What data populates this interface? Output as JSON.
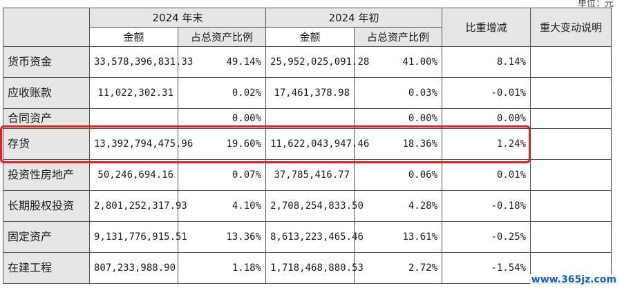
{
  "unit_label": "单位：元",
  "header": {
    "period_end": "2024 年末",
    "period_start": "2024 年初",
    "ratio_change": "比重增减",
    "major_change_note": "重大变动说明",
    "amount": "金额",
    "pct_of_total_assets": "占总资产比例"
  },
  "rows": [
    {
      "item": "货币资金",
      "end_amount": "33,578,396,831.33",
      "end_pct": "49.14%",
      "start_amount": "25,952,025,091.28",
      "start_pct": "41.00%",
      "change": "8.14%",
      "note": ""
    },
    {
      "item": "应收账款",
      "end_amount": "11,022,302.31",
      "end_pct": "0.02%",
      "start_amount": "17,461,378.98",
      "start_pct": "0.03%",
      "change": "-0.01%",
      "note": ""
    },
    {
      "item": "合同资产",
      "end_amount": "",
      "end_pct": "0.00%",
      "start_amount": "",
      "start_pct": "0.00%",
      "change": "0.00%",
      "note": ""
    },
    {
      "item": "存货",
      "end_amount": "13,392,794,475.96",
      "end_pct": "19.60%",
      "start_amount": "11,622,043,947.46",
      "start_pct": "18.36%",
      "change": "1.24%",
      "note": ""
    },
    {
      "item": "投资性房地产",
      "end_amount": "50,246,694.16",
      "end_pct": "0.07%",
      "start_amount": "37,785,416.77",
      "start_pct": "0.06%",
      "change": "0.01%",
      "note": ""
    },
    {
      "item": "长期股权投资",
      "end_amount": "2,801,252,317.93",
      "end_pct": "4.10%",
      "start_amount": "2,708,254,833.50",
      "start_pct": "4.28%",
      "change": "-0.18%",
      "note": ""
    },
    {
      "item": "固定资产",
      "end_amount": "9,131,776,915.51",
      "end_pct": "13.36%",
      "start_amount": "8,613,223,465.46",
      "start_pct": "13.61%",
      "change": "-0.25%",
      "note": ""
    },
    {
      "item": "在建工程",
      "end_amount": "807,233,988.90",
      "end_pct": "1.18%",
      "start_amount": "1,718,468,880.53",
      "start_pct": "2.72%",
      "change": "-1.54%",
      "note": ""
    }
  ],
  "highlight_row_item": "存货",
  "watermark": "www.365jz.com",
  "colors": {
    "highlight": "#e41f22",
    "header_bg": "#e6e6e6",
    "watermark": "#0b62c9"
  }
}
